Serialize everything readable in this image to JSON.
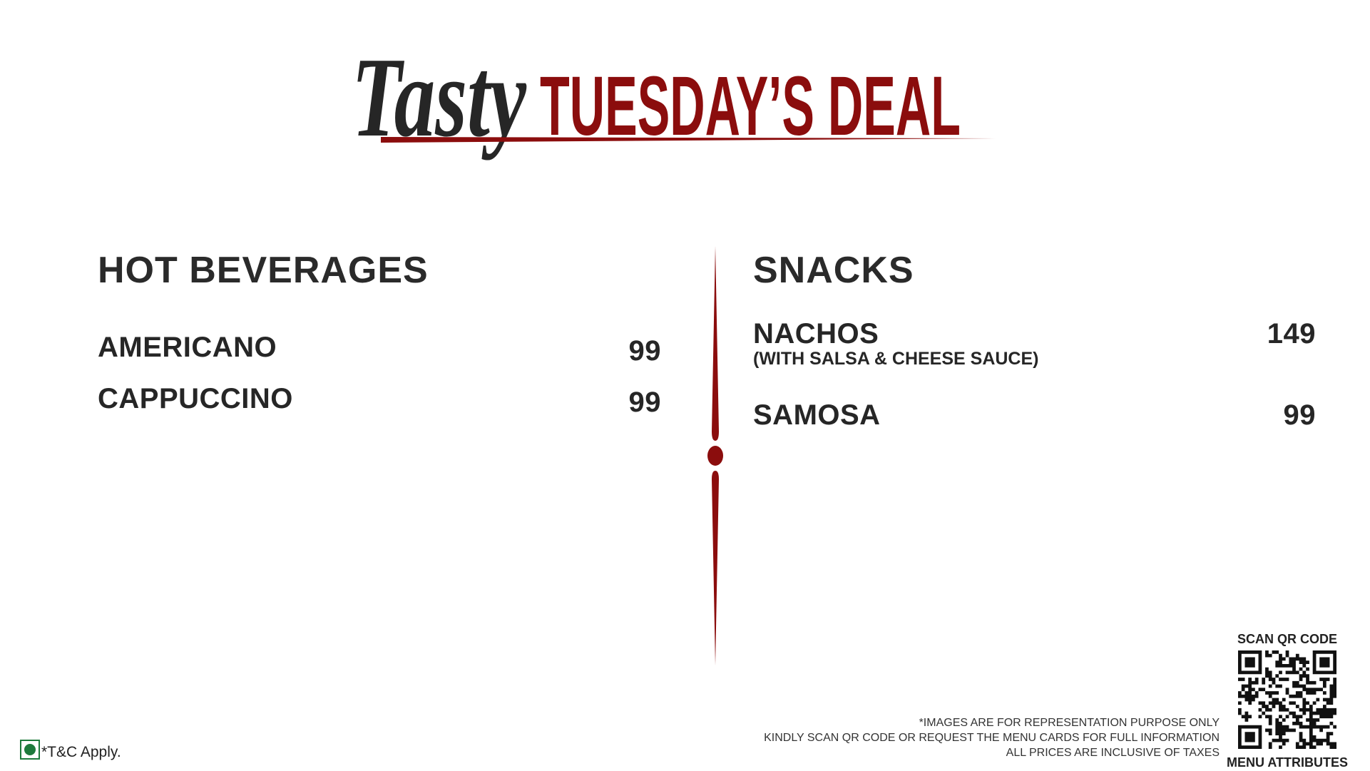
{
  "header": {
    "script_word": "Tasty",
    "title": "TUESDAY’S DEAL"
  },
  "sections": [
    {
      "title": "HOT BEVERAGES",
      "items": [
        {
          "name": "AMERICANO",
          "price": "99"
        },
        {
          "name": "CAPPUCCINO",
          "price": "99"
        }
      ]
    },
    {
      "title": "SNACKS",
      "items": [
        {
          "name": "NACHOS",
          "note": "(WITH SALSA & CHEESE SAUCE)",
          "price": "149"
        },
        {
          "name": "SAMOSA",
          "price": "99"
        }
      ]
    }
  ],
  "qr": {
    "heading": "SCAN QR CODE",
    "caption": "MENU ATTRIBUTES"
  },
  "footer": {
    "notes": [
      "*IMAGES ARE FOR REPRESENTATION PURPOSE ONLY",
      "KINDLY SCAN QR CODE OR REQUEST THE MENU CARDS FOR FULL INFORMATION",
      "ALL PRICES ARE INCLUSIVE OF TAXES"
    ],
    "terms": "*T&C Apply."
  }
}
